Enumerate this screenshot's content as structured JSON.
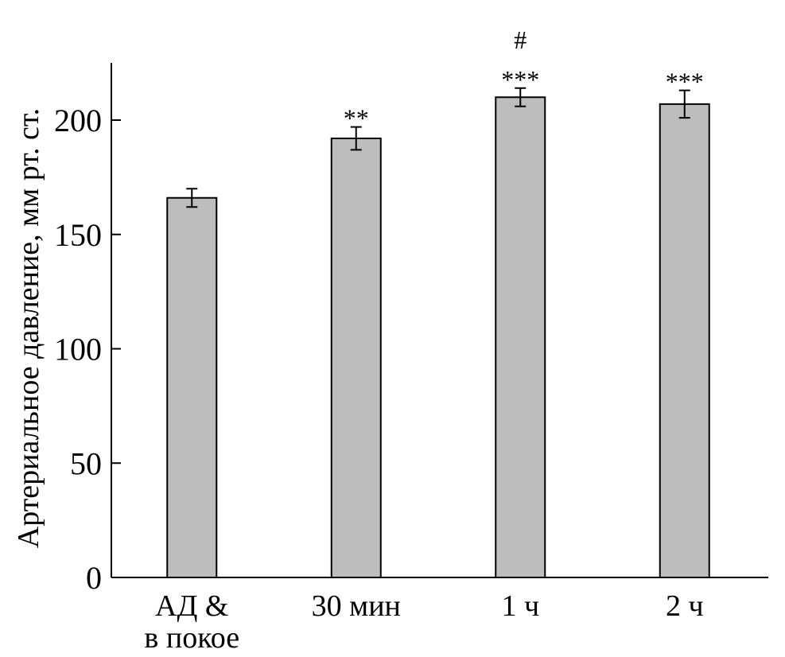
{
  "chart_data": {
    "type": "bar",
    "categories": [
      "АД &\nв покое",
      "30 мин",
      "1 ч",
      "2 ч"
    ],
    "values": [
      166,
      192,
      210,
      207
    ],
    "errors": [
      4,
      5,
      4,
      6
    ],
    "annotations": [
      [],
      [
        "**"
      ],
      [
        "#",
        "***"
      ],
      [
        "***"
      ]
    ],
    "title": "",
    "xlabel": "",
    "ylabel": "Артериальное давление, мм рт. ст.",
    "ylim": [
      0,
      225
    ],
    "yticks": [
      0,
      50,
      100,
      150,
      200
    ],
    "grid": false,
    "legend": "none",
    "colors": {
      "bar_fill": "#bdbdbd",
      "bar_stroke": "#000000",
      "axis": "#000000"
    }
  }
}
